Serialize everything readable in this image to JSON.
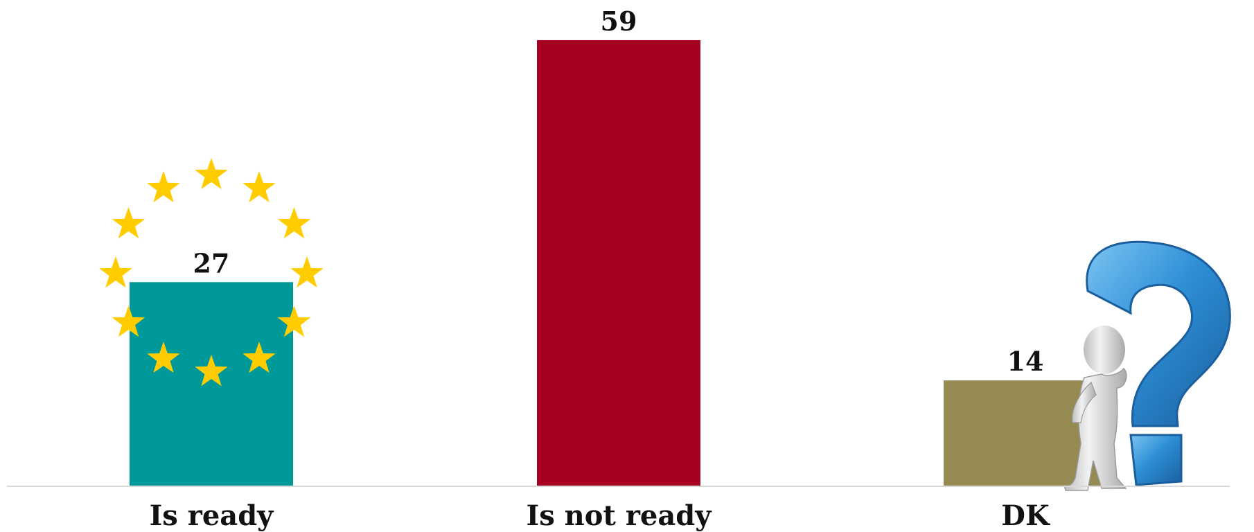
{
  "chart_data": {
    "type": "bar",
    "title": "",
    "xlabel": "",
    "ylabel": "",
    "categories": [
      "Is ready",
      "Is not ready",
      "DK"
    ],
    "values": [
      27,
      59,
      14
    ],
    "value_labels": [
      "27",
      "59",
      "14"
    ],
    "ylim": [
      0,
      59
    ],
    "grid": false,
    "legend": "none",
    "colors": [
      "#009999",
      "#A50021",
      "#958B52"
    ],
    "annotations": [
      "eu-stars-ring-icon",
      "thinking-person-question-mark-icon"
    ]
  },
  "colors": {
    "star": "#FFCC00",
    "question_mark": "#2E8FD6",
    "figure": "#D8D8D8",
    "axis": "#D9D9D9"
  }
}
